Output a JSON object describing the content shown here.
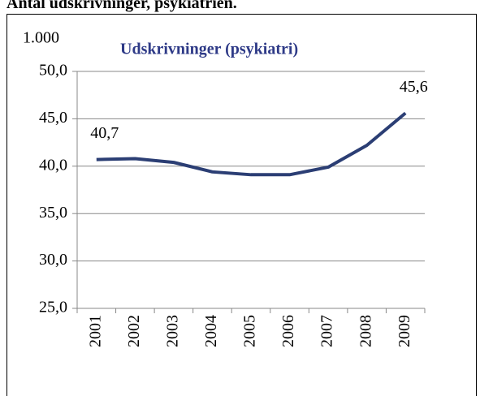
{
  "page_title": "Antal udskrivninger, psykiatrien.",
  "chart_data": {
    "type": "line",
    "title": "Udskrivninger (psykiatri)",
    "ylabel": "1.000",
    "categories": [
      "2001",
      "2002",
      "2003",
      "2004",
      "2005",
      "2006",
      "2007",
      "2008",
      "2009"
    ],
    "values": [
      40.7,
      40.8,
      40.4,
      39.4,
      39.1,
      39.1,
      39.9,
      42.2,
      45.6
    ],
    "value_labels": [
      "40,7",
      null,
      null,
      null,
      null,
      null,
      null,
      null,
      "45,6"
    ],
    "color": "#2b3e74",
    "ylim": [
      25,
      50
    ],
    "yticks": [
      {
        "value": 25,
        "label": "25,0"
      },
      {
        "value": 30,
        "label": "30,0"
      },
      {
        "value": 35,
        "label": "35,0"
      },
      {
        "value": 40,
        "label": "40,0"
      },
      {
        "value": 45,
        "label": "45,0"
      },
      {
        "value": 50,
        "label": "50,0"
      }
    ],
    "grid": true
  }
}
